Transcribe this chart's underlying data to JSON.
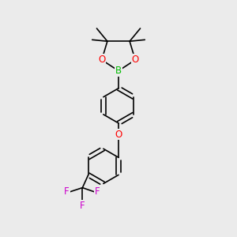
{
  "bg_color": "#ebebeb",
  "bond_color": "#000000",
  "bond_width": 1.2,
  "figsize": [
    3.0,
    3.0
  ],
  "dpi": 100,
  "atoms": {
    "B": {
      "color": "#00bb00",
      "fontsize": 8.5
    },
    "O": {
      "color": "#ff0000",
      "fontsize": 8.5
    },
    "F": {
      "color": "#cc00cc",
      "fontsize": 8.5
    }
  },
  "xlim": [
    0,
    10
  ],
  "ylim": [
    0,
    10
  ]
}
